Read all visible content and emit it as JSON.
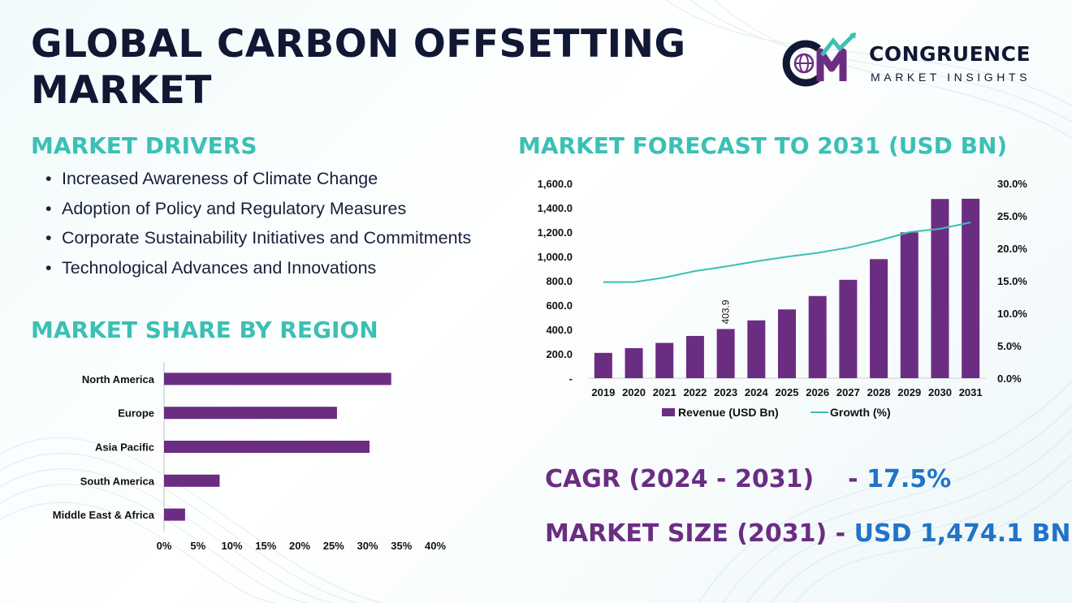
{
  "title": "GLOBAL CARBON OFFSETTING MARKET",
  "logo": {
    "name": "CONGRUENCE",
    "sub": "MARKET INSIGHTS"
  },
  "drivers": {
    "heading": "MARKET DRIVERS",
    "items": [
      "Increased Awareness of Climate Change",
      "Adoption of Policy and Regulatory Measures",
      "Corporate Sustainability Initiatives and Commitments",
      "Technological Advances and Innovations"
    ]
  },
  "region_heading": "MARKET SHARE BY REGION",
  "forecast_heading": "MARKET FORECAST TO 2031 (USD BN)",
  "stats": {
    "cagr_label": "CAGR (2024 - 2031)",
    "cagr_value": "17.5%",
    "size_label": "MARKET SIZE (2031)",
    "size_value": "USD 1,474.1 BN"
  },
  "colors": {
    "bar": "#6b2d82",
    "line": "#3bc0b4",
    "heading": "#3bc0b4",
    "title": "#111833",
    "value": "#2174c7"
  },
  "chart_data": [
    {
      "type": "bar",
      "orientation": "horizontal",
      "categories": [
        "North America",
        "Europe",
        "Asia Pacific",
        "South America",
        "Middle East & Africa"
      ],
      "values": [
        33.5,
        25.5,
        30.3,
        8.2,
        3.1
      ],
      "xlim": [
        0,
        40
      ],
      "x_ticks": [
        "0%",
        "5%",
        "10%",
        "15%",
        "20%",
        "25%",
        "30%",
        "35%",
        "40%"
      ],
      "grid": false
    },
    {
      "type": "bar",
      "categories": [
        "2019",
        "2020",
        "2021",
        "2022",
        "2023",
        "2024",
        "2025",
        "2026",
        "2027",
        "2028",
        "2029",
        "2030",
        "2031"
      ],
      "series": [
        {
          "name": "Revenue (USD Bn)",
          "type": "bar",
          "axis": "left",
          "values": [
            208,
            247,
            290,
            347,
            403.9,
            475,
            565,
            675,
            808,
            978,
            1198,
            1472,
            1474.1
          ]
        },
        {
          "name": "Growth (%)",
          "type": "line",
          "axis": "right",
          "values": [
            14.8,
            14.8,
            15.5,
            16.5,
            17.2,
            18.0,
            18.7,
            19.3,
            20.1,
            21.2,
            22.5,
            23.0,
            24.0
          ]
        }
      ],
      "data_labels": [
        {
          "index": 4,
          "text": "403.9"
        }
      ],
      "ylim_left": [
        0,
        1600
      ],
      "y_left_ticks": [
        "-",
        "200.0",
        "400.0",
        "600.0",
        "800.0",
        "1,000.0",
        "1,200.0",
        "1,400.0",
        "1,600.0"
      ],
      "ylim_right": [
        0,
        30
      ],
      "y_right_ticks": [
        "0.0%",
        "5.0%",
        "10.0%",
        "15.0%",
        "20.0%",
        "25.0%",
        "30.0%"
      ],
      "legend_position": "bottom",
      "grid": false
    }
  ]
}
